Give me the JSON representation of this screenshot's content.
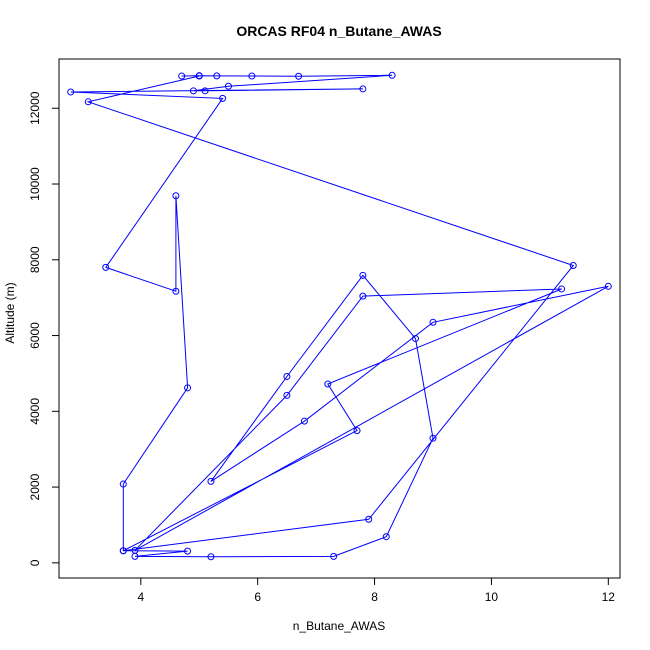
{
  "chart_data": {
    "type": "line",
    "title": "ORCAS RF04 n_Butane_AWAS",
    "xlabel": "n_Butane_AWAS",
    "ylabel": "Altitude (m)",
    "xlim": [
      2.6,
      12.2
    ],
    "ylim": [
      -400,
      13300
    ],
    "xticks": [
      4,
      6,
      8,
      10,
      12
    ],
    "yticks": [
      0,
      2000,
      4000,
      6000,
      8000,
      10000,
      12000
    ],
    "grid": false,
    "legend": "none",
    "markers": "open circles",
    "color": "#0000ff",
    "series": [
      {
        "x": [
          4.7,
          5.0,
          5.3,
          5.9,
          6.7,
          8.3,
          5.5,
          4.9,
          5.1,
          7.8,
          2.8,
          5.4,
          3.4,
          4.6,
          4.6,
          4.8,
          3.7,
          3.7,
          4.8,
          3.9,
          5.2,
          7.3,
          8.2,
          9.0,
          8.7,
          7.8,
          6.5,
          5.2,
          6.8,
          9.0,
          12.0,
          3.9,
          6.5,
          7.8,
          11.2,
          7.2,
          7.7,
          3.7,
          7.9,
          11.4,
          3.1,
          5.0
        ],
        "y": [
          12850,
          12860,
          12855,
          12850,
          12845,
          12870,
          12580,
          12460,
          12460,
          12510,
          12430,
          12260,
          7800,
          7170,
          9690,
          4620,
          2080,
          320,
          310,
          170,
          160,
          170,
          690,
          3290,
          5920,
          7590,
          4920,
          2150,
          3740,
          6350,
          7300,
          330,
          4420,
          7040,
          7230,
          4720,
          3490,
          320,
          1150,
          7850,
          12170,
          12850
        ]
      }
    ]
  }
}
